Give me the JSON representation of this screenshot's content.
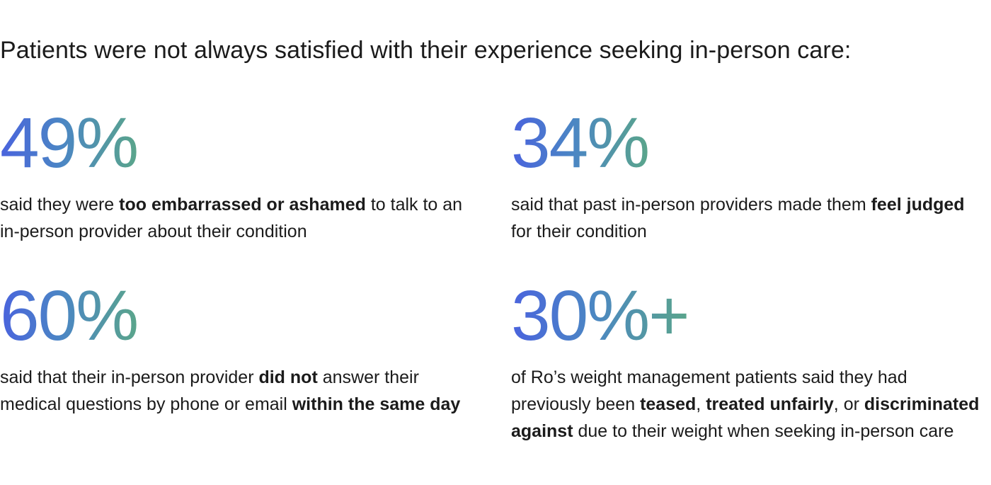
{
  "heading": "Patients were not always satisfied with their experience seeking in-person care:",
  "colors": {
    "gradient_start": "#4a63dd",
    "gradient_mid": "#4b86c4",
    "gradient_end": "#5aa58b",
    "text": "#1b1b1b"
  },
  "stats": [
    {
      "value": "49%",
      "text": [
        {
          "t": "said they were ",
          "b": false
        },
        {
          "t": "too embarrassed or ashamed",
          "b": true
        },
        {
          "t": " to talk to an in-person provider about their condition",
          "b": false
        }
      ]
    },
    {
      "value": "34%",
      "text": [
        {
          "t": "said that past in-person providers made them ",
          "b": false
        },
        {
          "t": "feel judged",
          "b": true
        },
        {
          "t": " for their condition",
          "b": false
        }
      ]
    },
    {
      "value": "60%",
      "text": [
        {
          "t": "said that their in-person  provider ",
          "b": false
        },
        {
          "t": "did not",
          "b": true
        },
        {
          "t": " answer their medical questions by phone or email ",
          "b": false
        },
        {
          "t": "within the same day",
          "b": true
        }
      ]
    },
    {
      "value": "30%+",
      "text": [
        {
          "t": "of Ro’s weight management patients said they had previously been ",
          "b": false
        },
        {
          "t": "teased",
          "b": true
        },
        {
          "t": ", ",
          "b": false
        },
        {
          "t": "treated unfairly",
          "b": true
        },
        {
          "t": ", or ",
          "b": false
        },
        {
          "t": "discriminated against",
          "b": true
        },
        {
          "t": " due to their weight when seeking in-person care",
          "b": false
        }
      ]
    }
  ]
}
